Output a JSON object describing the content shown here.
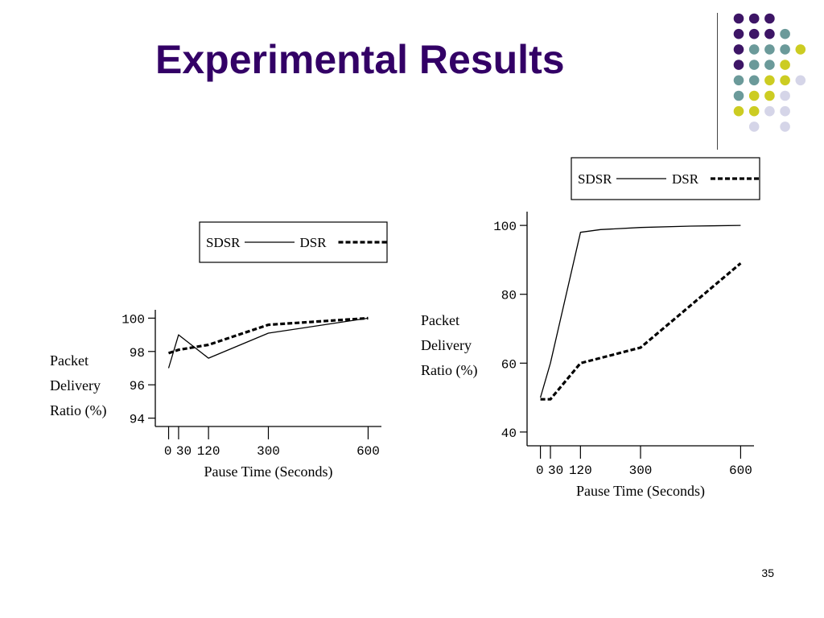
{
  "slide": {
    "title": "Experimental Results",
    "page_number": "35"
  },
  "colors": {
    "title": "#330066",
    "dot_purple": "#3d1566",
    "dot_teal": "#6b9a9a",
    "dot_yellow": "#cccc22",
    "dot_lavender": "#d5d5e8"
  },
  "decoration": {
    "dot_grid": [
      [
        "purple",
        "purple",
        "purple",
        null,
        null
      ],
      [
        "purple",
        "purple",
        "purple",
        "teal",
        null
      ],
      [
        "purple",
        "teal",
        "teal",
        "teal",
        "yellow"
      ],
      [
        "purple",
        "teal",
        "teal",
        "yellow",
        null
      ],
      [
        "teal",
        "teal",
        "yellow",
        "yellow",
        "lavender"
      ],
      [
        "teal",
        "yellow",
        "yellow",
        "lavender",
        null
      ],
      [
        "yellow",
        "yellow",
        "lavender",
        "lavender",
        null
      ],
      [
        null,
        "lavender",
        null,
        "lavender",
        null
      ]
    ]
  },
  "chart_data": [
    {
      "type": "line",
      "xlabel": "Pause Time (Seconds)",
      "ylabel": "Packet Delivery Ratio (%)",
      "ylabel_lines": [
        "Packet",
        "Delivery",
        "Ratio (%)"
      ],
      "xticks": [
        0,
        30,
        120,
        300,
        600
      ],
      "xtick_labels": [
        "0",
        "30",
        "120",
        "300",
        "600"
      ],
      "yticks": [
        94,
        96,
        98,
        100
      ],
      "xlim": [
        -40,
        640
      ],
      "ylim": [
        93.5,
        100.5
      ],
      "legend_position": "top",
      "series": [
        {
          "name": "SDSR",
          "style": "solid",
          "x": [
            0,
            30,
            120,
            300,
            600
          ],
          "y": [
            97.0,
            99.0,
            97.6,
            99.1,
            100.0
          ]
        },
        {
          "name": "DSR",
          "style": "dashed",
          "x": [
            0,
            30,
            120,
            300,
            600
          ],
          "y": [
            97.9,
            98.1,
            98.4,
            99.6,
            100.0
          ]
        }
      ]
    },
    {
      "type": "line",
      "xlabel": "Pause Time (Seconds)",
      "ylabel": "Packet Delivery Ratio (%)",
      "ylabel_lines": [
        "Packet",
        "Delivery",
        "Ratio (%)"
      ],
      "xticks": [
        0,
        30,
        120,
        300,
        600
      ],
      "xtick_labels": [
        "0",
        "30",
        "120",
        "300",
        "600"
      ],
      "yticks": [
        40,
        60,
        80,
        100
      ],
      "xlim": [
        -40,
        640
      ],
      "ylim": [
        36,
        104
      ],
      "legend_position": "top",
      "series": [
        {
          "name": "SDSR",
          "style": "solid",
          "x": [
            0,
            30,
            120,
            180,
            300,
            450,
            600
          ],
          "y": [
            50,
            60,
            98,
            98.8,
            99.4,
            99.8,
            100
          ]
        },
        {
          "name": "DSR",
          "style": "dashed",
          "x": [
            0,
            30,
            120,
            300,
            600
          ],
          "y": [
            49.5,
            49.5,
            60,
            64.5,
            89
          ]
        }
      ]
    }
  ]
}
